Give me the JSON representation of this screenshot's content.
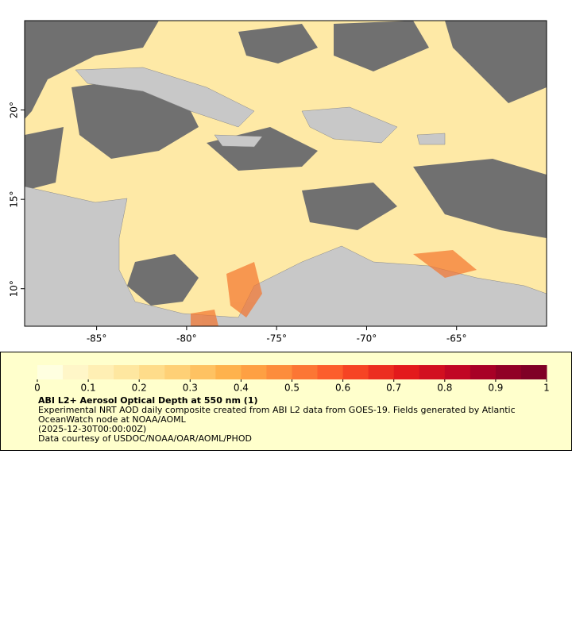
{
  "chart_data": {
    "type": "map",
    "xlim": [
      -89,
      -60
    ],
    "ylim": [
      7.9,
      25
    ],
    "xticks": [
      {
        "value": -85,
        "label": "-85°"
      },
      {
        "value": -80,
        "label": "-80°"
      },
      {
        "value": -75,
        "label": "-75°"
      },
      {
        "value": -70,
        "label": "-70°"
      },
      {
        "value": -65,
        "label": "-65°"
      }
    ],
    "yticks": [
      {
        "value": 10,
        "label": "10°"
      },
      {
        "value": 15,
        "label": "15°"
      },
      {
        "value": 20,
        "label": "20°"
      }
    ],
    "colorbar": {
      "range": [
        0,
        1
      ],
      "ticks": [
        0,
        0.1,
        0.2,
        0.3,
        0.4,
        0.5,
        0.6,
        0.7,
        0.8,
        0.9,
        1
      ],
      "colors": [
        "#ffffe0",
        "#fff6c8",
        "#ffefb4",
        "#fee7a0",
        "#fedc8a",
        "#fed076",
        "#fec262",
        "#feb24c",
        "#fea043",
        "#fd8d3c",
        "#fc7634",
        "#fc5e2c",
        "#f64424",
        "#ec2e20",
        "#e31a1c",
        "#d20f20",
        "#c10624",
        "#a80026",
        "#910026",
        "#800026"
      ]
    },
    "title": "ABI L2+ Aerosol Optical Depth at 550 nm (1)",
    "description": "Experimental NRT AOD daily composite created from ABI L2 data from GOES-19. Fields generated by Atlantic OceanWatch node at NOAA/AOML",
    "time": "(2025-12-30T00:00:00Z)",
    "credit": "Data courtesy of USDOC/NOAA/OAR/AOML/PHOD"
  }
}
